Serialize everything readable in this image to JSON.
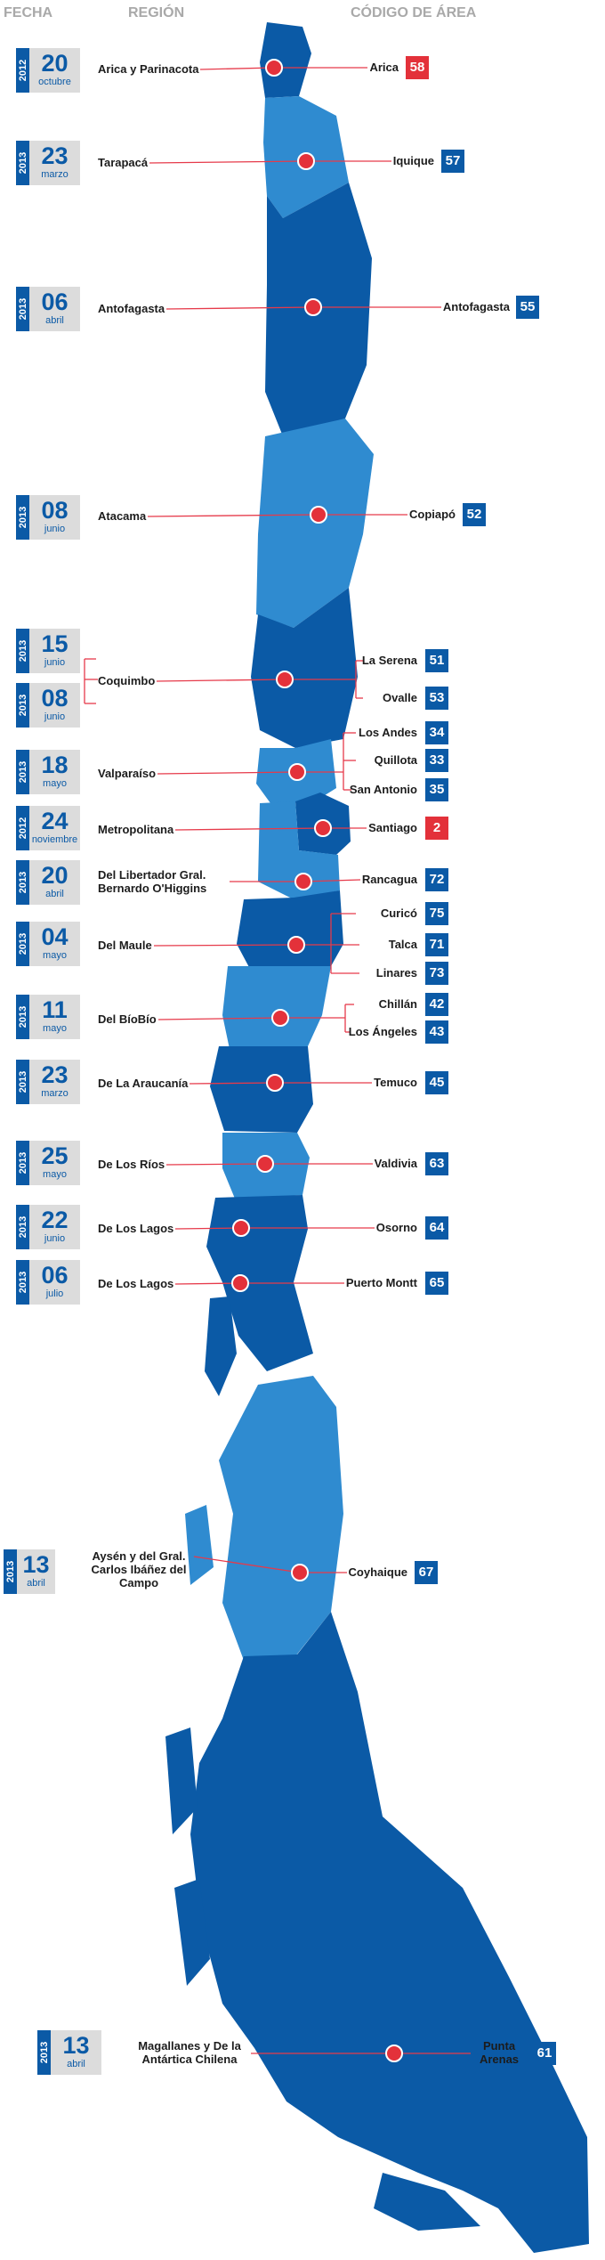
{
  "headers": {
    "fecha": "FECHA",
    "region": "REGIÓN",
    "codigo": "CÓDIGO DE ÁREA"
  },
  "colors": {
    "dark_blue": "#0b5aa6",
    "light_blue": "#2f8bd0",
    "red": "#e3313a",
    "date_bg": "#dcdcdc",
    "line": "#e63a4a"
  },
  "rows": [
    {
      "year": "2012",
      "day": "20",
      "month": "octubre",
      "region": "Arica y Parinacota",
      "cities": [
        {
          "name": "Arica",
          "code": "58",
          "code_color": "red"
        }
      ]
    },
    {
      "year": "2013",
      "day": "23",
      "month": "marzo",
      "region": "Tarapacá",
      "cities": [
        {
          "name": "Iquique",
          "code": "57",
          "code_color": "blue"
        }
      ]
    },
    {
      "year": "2013",
      "day": "06",
      "month": "abril",
      "region": "Antofagasta",
      "cities": [
        {
          "name": "Antofagasta",
          "code": "55",
          "code_color": "blue"
        }
      ]
    },
    {
      "year": "2013",
      "day": "08",
      "month": "junio",
      "region": "Atacama",
      "cities": [
        {
          "name": "Copiapó",
          "code": "52",
          "code_color": "blue"
        }
      ]
    },
    {
      "year": "2013",
      "day": "15",
      "month": "junio",
      "region": "Coquimbo",
      "cities": [
        {
          "name": "La Serena",
          "code": "51",
          "code_color": "blue"
        }
      ]
    },
    {
      "year": "2013",
      "day": "08",
      "month": "junio",
      "region": "",
      "cities": [
        {
          "name": "Ovalle",
          "code": "53",
          "code_color": "blue"
        }
      ]
    },
    {
      "year": "2013",
      "day": "18",
      "month": "mayo",
      "region": "Valparaíso",
      "cities": [
        {
          "name": "Los Andes",
          "code": "34",
          "code_color": "blue"
        },
        {
          "name": "Quillota",
          "code": "33",
          "code_color": "blue"
        },
        {
          "name": "San Antonio",
          "code": "35",
          "code_color": "blue"
        }
      ]
    },
    {
      "year": "2012",
      "day": "24",
      "month": "noviembre",
      "region": "Metropolitana",
      "cities": [
        {
          "name": "Santiago",
          "code": "2",
          "code_color": "red"
        }
      ]
    },
    {
      "year": "2013",
      "day": "20",
      "month": "abril",
      "region": "Del Libertador Gral. Bernardo O'Higgins",
      "cities": [
        {
          "name": "Rancagua",
          "code": "72",
          "code_color": "blue"
        }
      ]
    },
    {
      "year": "2013",
      "day": "04",
      "month": "mayo",
      "region": "Del Maule",
      "cities": [
        {
          "name": "Curicó",
          "code": "75",
          "code_color": "blue"
        },
        {
          "name": "Talca",
          "code": "71",
          "code_color": "blue"
        },
        {
          "name": "Linares",
          "code": "73",
          "code_color": "blue"
        }
      ]
    },
    {
      "year": "2013",
      "day": "11",
      "month": "mayo",
      "region": "Del BíoBío",
      "cities": [
        {
          "name": "Chillán",
          "code": "42",
          "code_color": "blue"
        },
        {
          "name": "Los Ángeles",
          "code": "43",
          "code_color": "blue"
        }
      ]
    },
    {
      "year": "2013",
      "day": "23",
      "month": "marzo",
      "region": "De La Araucanía",
      "cities": [
        {
          "name": "Temuco",
          "code": "45",
          "code_color": "blue"
        }
      ]
    },
    {
      "year": "2013",
      "day": "25",
      "month": "mayo",
      "region": "De Los Ríos",
      "cities": [
        {
          "name": "Valdivia",
          "code": "63",
          "code_color": "blue"
        }
      ]
    },
    {
      "year": "2013",
      "day": "22",
      "month": "junio",
      "region": "De Los Lagos",
      "cities": [
        {
          "name": "Osorno",
          "code": "64",
          "code_color": "blue"
        }
      ]
    },
    {
      "year": "2013",
      "day": "06",
      "month": "julio",
      "region": "De Los Lagos",
      "cities": [
        {
          "name": "Puerto Montt",
          "code": "65",
          "code_color": "blue"
        }
      ]
    },
    {
      "year": "2013",
      "day": "13",
      "month": "abril",
      "region": "Aysén y del Gral. Carlos Ibáñez del Campo",
      "cities": [
        {
          "name": "Coyhaique",
          "code": "67",
          "code_color": "blue"
        }
      ]
    },
    {
      "year": "2013",
      "day": "13",
      "month": "abril",
      "region": "Magallanes y De la Antártica Chilena",
      "cities": [
        {
          "name": "Punta Arenas",
          "code": "61",
          "code_color": "blue"
        }
      ]
    }
  ]
}
